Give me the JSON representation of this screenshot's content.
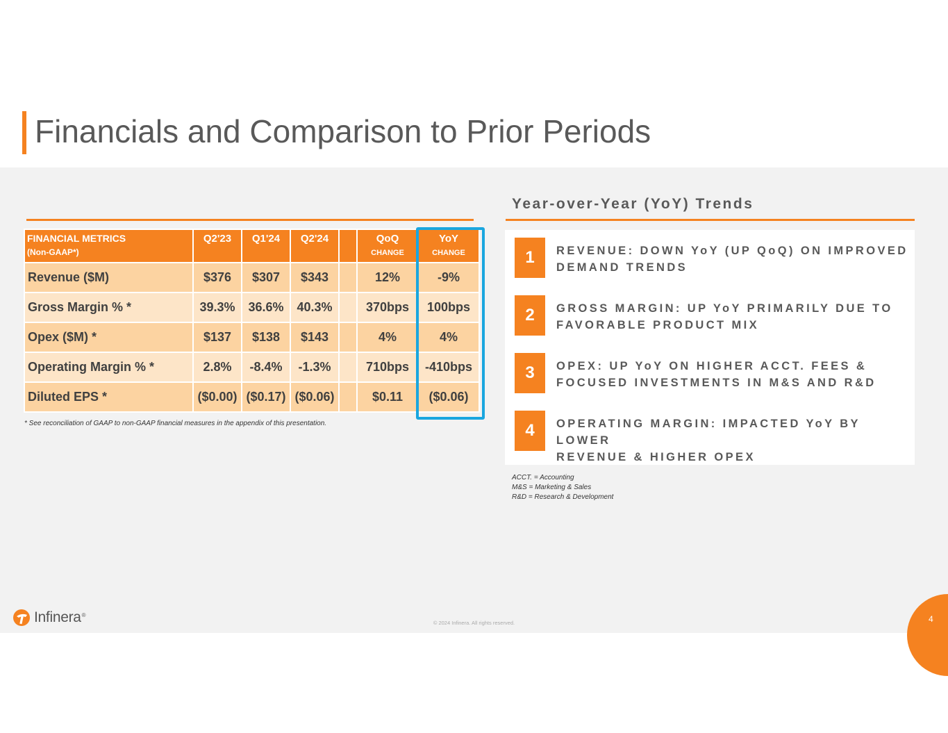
{
  "title": "Financials and Comparison to Prior Periods",
  "table": {
    "headers": [
      {
        "label": "FINANCIAL METRICS",
        "sub": "(Non-GAAP*)"
      },
      {
        "label": "Q2'23",
        "sub": ""
      },
      {
        "label": "Q1'24",
        "sub": ""
      },
      {
        "label": "Q2'24",
        "sub": ""
      },
      {
        "label": "",
        "sub": ""
      },
      {
        "label": "QoQ",
        "sub": "CHANGE"
      },
      {
        "label": "YoY",
        "sub": "CHANGE"
      }
    ],
    "rows": [
      {
        "metric": "Revenue ($M)",
        "q2_23": "$376",
        "q1_24": "$307",
        "q2_24": "$343",
        "qoq": "12%",
        "yoy": "-9%"
      },
      {
        "metric": "Gross Margin % *",
        "q2_23": "39.3%",
        "q1_24": "36.6%",
        "q2_24": "40.3%",
        "qoq": "370bps",
        "yoy": "100bps"
      },
      {
        "metric": "Opex ($M) *",
        "q2_23": "$137",
        "q1_24": "$138",
        "q2_24": "$143",
        "qoq": "4%",
        "yoy": "4%"
      },
      {
        "metric": "Operating Margin % *",
        "q2_23": "2.8%",
        "q1_24": "-8.4%",
        "q2_24": "-1.3%",
        "qoq": "710bps",
        "yoy": "-410bps"
      },
      {
        "metric": "Diluted EPS *",
        "q2_23": "($0.00)",
        "q1_24": "($0.17)",
        "q2_24": "($0.06)",
        "qoq": "$0.11",
        "yoy": "($0.06)"
      }
    ],
    "footnote": "* See reconciliation of GAAP to non-GAAP financial measures in the appendix of this presentation."
  },
  "trends": {
    "title": "Year-over-Year (YoY) Trends",
    "items": [
      {
        "num": "1",
        "line1": "REVENUE: DOWN YoY (UP QoQ) ON IMPROVED",
        "line2": "DEMAND TRENDS"
      },
      {
        "num": "2",
        "line1": "GROSS MARGIN: UP YoY PRIMARILY DUE TO",
        "line2": "FAVORABLE PRODUCT MIX"
      },
      {
        "num": "3",
        "line1": "OPEX: UP YoY ON HIGHER ACCT. FEES &",
        "line2": "FOCUSED INVESTMENTS IN M&S AND R&D"
      },
      {
        "num": "4",
        "line1": "OPERATING MARGIN: IMPACTED YoY BY LOWER",
        "line2": "REVENUE & HIGHER OPEX"
      }
    ]
  },
  "abbreviations": [
    "ACCT. = Accounting",
    "M&S = Marketing & Sales",
    "R&D = Research & Development"
  ],
  "footer": {
    "logo_text": "Infinera",
    "logo_icon": "infinera-logo-icon",
    "copyright": "© 2024 Infinera. All rights reserved.",
    "page_number": "4"
  },
  "colors": {
    "accent": "#f58220",
    "highlight_border": "#1aa6df",
    "row_dark": "#fcd3a1",
    "row_light": "#fde5c8"
  }
}
